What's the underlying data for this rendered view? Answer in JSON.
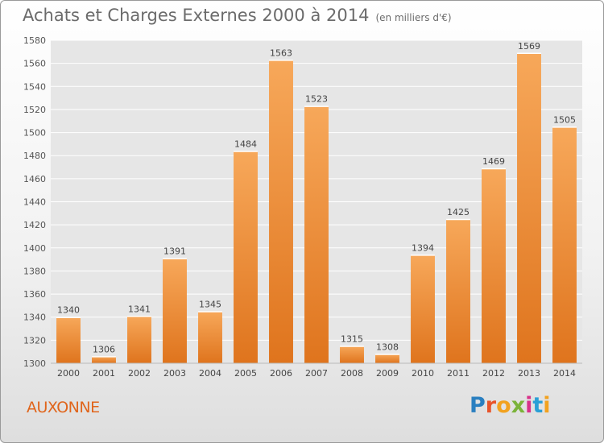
{
  "header": {
    "title": "Achats et Charges Externes 2000 à 2014",
    "subtitle": "(en milliers d'€)"
  },
  "footer": {
    "town": "AUXONNE",
    "logo_letters": [
      {
        "char": "P",
        "color": "#2a7fc0"
      },
      {
        "char": "r",
        "color": "#e8542a"
      },
      {
        "char": "o",
        "color": "#f2a21f"
      },
      {
        "char": "x",
        "color": "#7bb33a"
      },
      {
        "char": "i",
        "color": "#d8318a"
      },
      {
        "char": "t",
        "color": "#2a9fd6"
      },
      {
        "char": "i",
        "color": "#f2a21f"
      }
    ]
  },
  "chart_data": {
    "type": "bar",
    "categories": [
      "2000",
      "2001",
      "2002",
      "2003",
      "2004",
      "2005",
      "2006",
      "2007",
      "2008",
      "2009",
      "2010",
      "2011",
      "2012",
      "2013",
      "2014"
    ],
    "values": [
      1340,
      1306,
      1341,
      1391,
      1345,
      1484,
      1563,
      1523,
      1315,
      1308,
      1394,
      1425,
      1469,
      1569,
      1505
    ],
    "ylim": [
      1300,
      1580
    ],
    "yticks": [
      1300,
      1320,
      1340,
      1360,
      1380,
      1400,
      1420,
      1440,
      1460,
      1480,
      1500,
      1520,
      1540,
      1560,
      1580
    ],
    "grid": true,
    "colors": {
      "bar_light": "#f7a85a",
      "bar_dark": "#e0761f",
      "grid": "#ffffff"
    }
  }
}
